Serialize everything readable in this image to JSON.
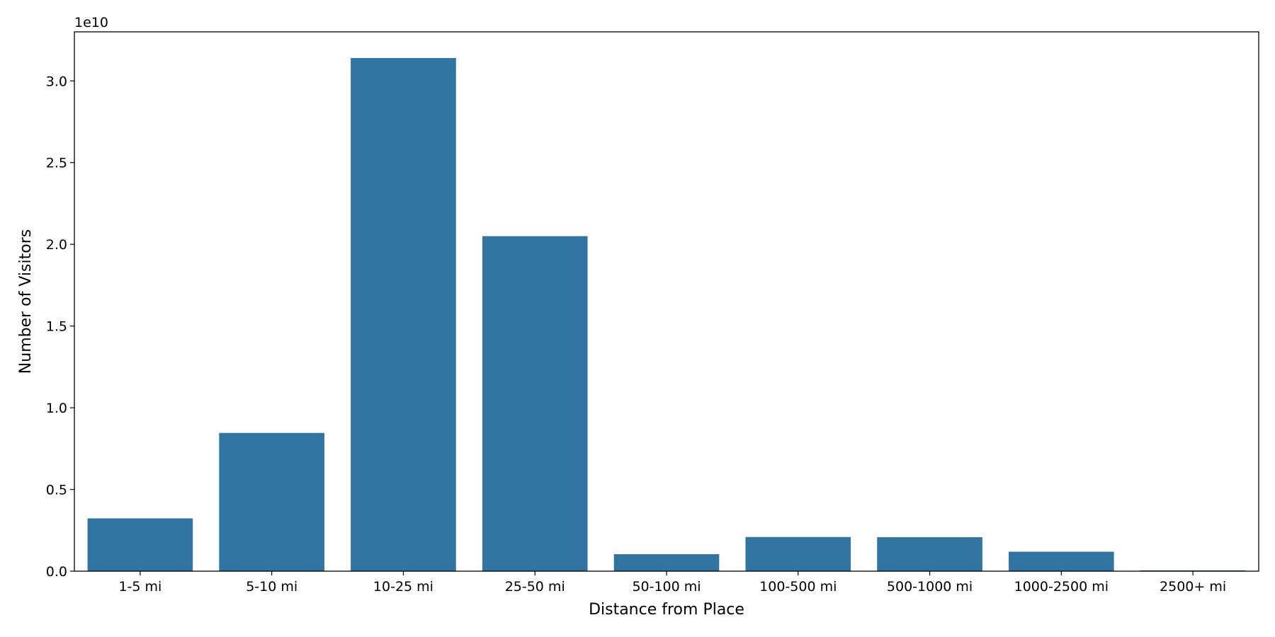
{
  "chart_data": {
    "type": "bar",
    "title": "",
    "xlabel": "Distance from Place",
    "ylabel": "Number of Visitors",
    "offset_text": "1e10",
    "categories": [
      "1-5 mi",
      "5-10 mi",
      "10-25 mi",
      "25-50 mi",
      "50-100 mi",
      "100-500 mi",
      "500-1000 mi",
      "1000-2500 mi",
      "2500+ mi"
    ],
    "values": [
      3230000000,
      8460000000,
      31400000000,
      20500000000,
      1040000000,
      2090000000,
      2080000000,
      1190000000,
      50000000
    ],
    "ylim": [
      0,
      33000000000
    ],
    "yticks": [
      0,
      5000000000,
      10000000000,
      15000000000,
      20000000000,
      25000000000,
      30000000000
    ],
    "ytick_labels": [
      "0.0",
      "0.5",
      "1.0",
      "1.5",
      "2.0",
      "2.5",
      "3.0"
    ],
    "grid": false,
    "bar_color": "#3274a1"
  }
}
